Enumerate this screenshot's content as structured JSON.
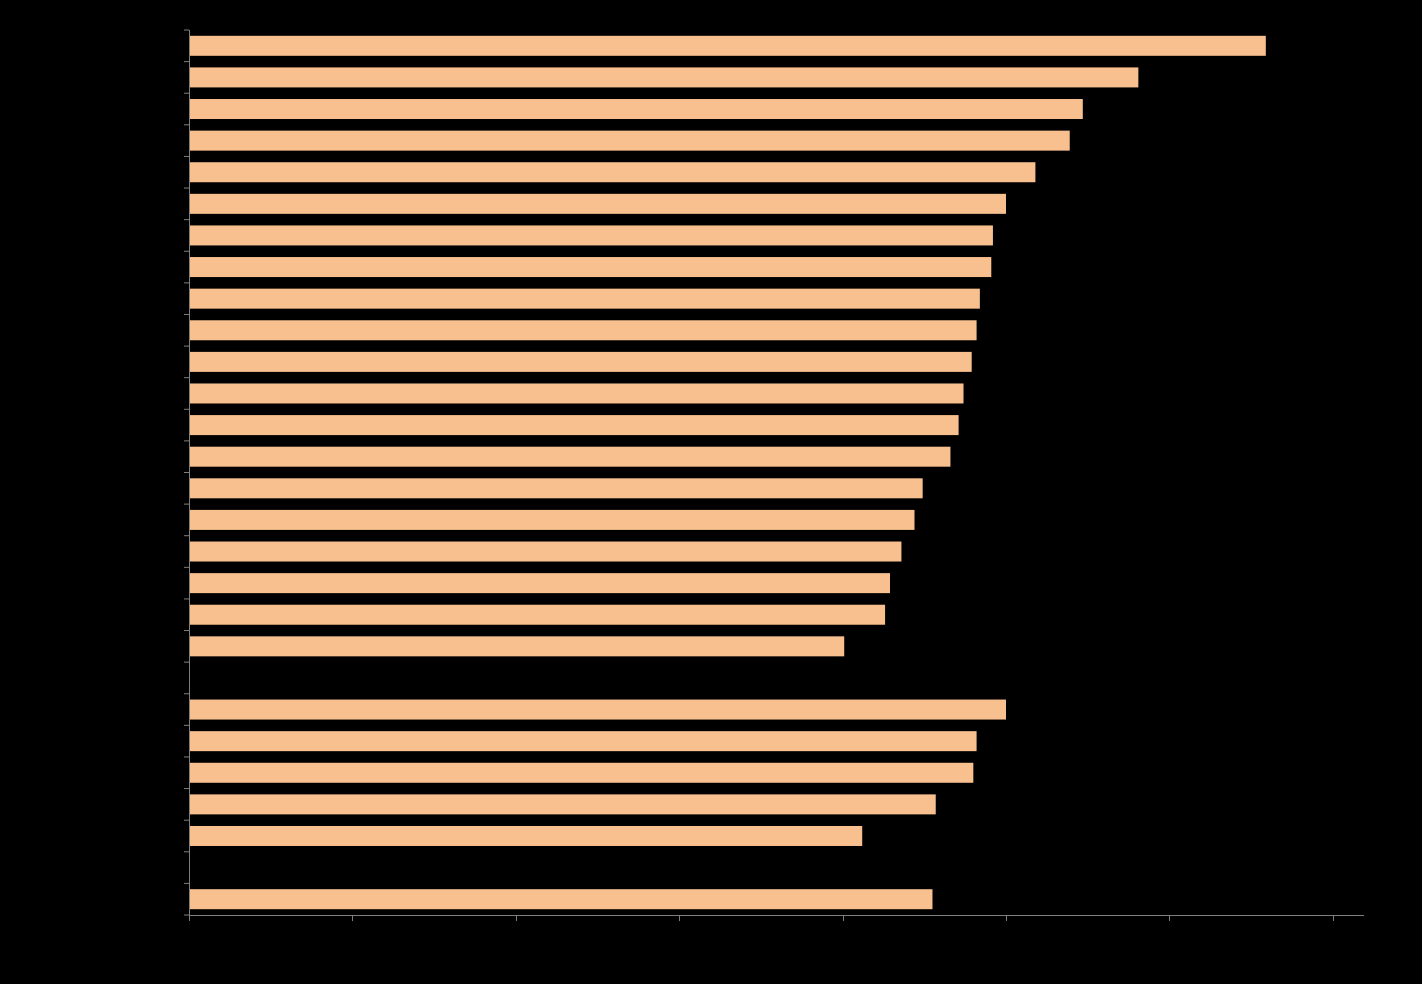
{
  "chart_data": {
    "type": "bar",
    "orientation": "horizontal",
    "title": "",
    "xlabel": "",
    "ylabel": "",
    "xlim": [
      0,
      7
    ],
    "x_ticks": [
      0,
      1,
      2,
      3,
      4,
      5,
      6,
      7
    ],
    "grid": false,
    "legend": "none",
    "rows": [
      {
        "value": 6.59
      },
      {
        "value": 5.81
      },
      {
        "value": 5.47
      },
      {
        "value": 5.39
      },
      {
        "value": 5.18
      },
      {
        "value": 5.0
      },
      {
        "value": 4.92
      },
      {
        "value": 4.91
      },
      {
        "value": 4.84
      },
      {
        "value": 4.82
      },
      {
        "value": 4.79
      },
      {
        "value": 4.74
      },
      {
        "value": 4.71
      },
      {
        "value": 4.66
      },
      {
        "value": 4.49
      },
      {
        "value": 4.44
      },
      {
        "value": 4.36
      },
      {
        "value": 4.29
      },
      {
        "value": 4.26
      },
      {
        "value": 4.01
      },
      {
        "value": null
      },
      {
        "value": 5.0
      },
      {
        "value": 4.82
      },
      {
        "value": 4.8
      },
      {
        "value": 4.57
      },
      {
        "value": 4.12
      },
      {
        "value": null
      },
      {
        "value": 4.55
      }
    ],
    "colors": {
      "bar": "#F9C08F",
      "axis": "#7F7F7F",
      "background": "#000000"
    }
  }
}
